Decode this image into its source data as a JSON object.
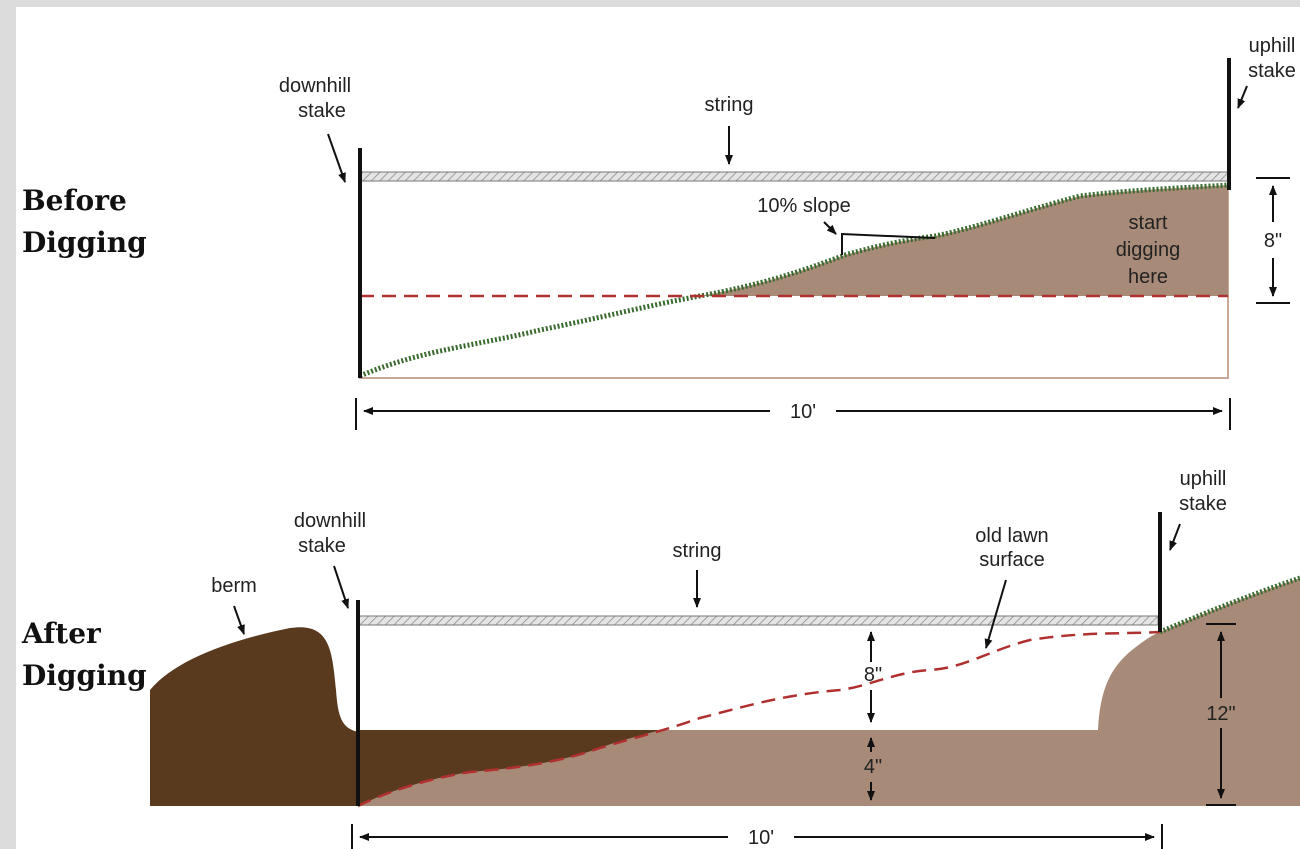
{
  "sections": {
    "before_title_1": "Before",
    "before_title_2": "Digging",
    "after_title_1": "After",
    "after_title_2": "Digging"
  },
  "before": {
    "downhill_stake_1": "downhill",
    "downhill_stake_2": "stake",
    "uphill_stake_1": "uphill",
    "uphill_stake_2": "stake",
    "string": "string",
    "slope": "10% slope",
    "start_1": "start",
    "start_2": "digging",
    "start_3": "here",
    "depth": "8\"",
    "length": "10'"
  },
  "after": {
    "berm": "berm",
    "downhill_stake_1": "downhill",
    "downhill_stake_2": "stake",
    "uphill_stake_1": "uphill",
    "uphill_stake_2": "stake",
    "string": "string",
    "old_lawn_1": "old lawn",
    "old_lawn_2": "surface",
    "depth_8": "8\"",
    "depth_4": "4\"",
    "depth_12": "12\"",
    "length": "10'"
  },
  "colors": {
    "soil_light": "#a88a78",
    "soil_dark": "#5a3a1f",
    "grass": "#3a6b2e",
    "dashed_line": "#b03030",
    "string": "#c8c8c8"
  }
}
